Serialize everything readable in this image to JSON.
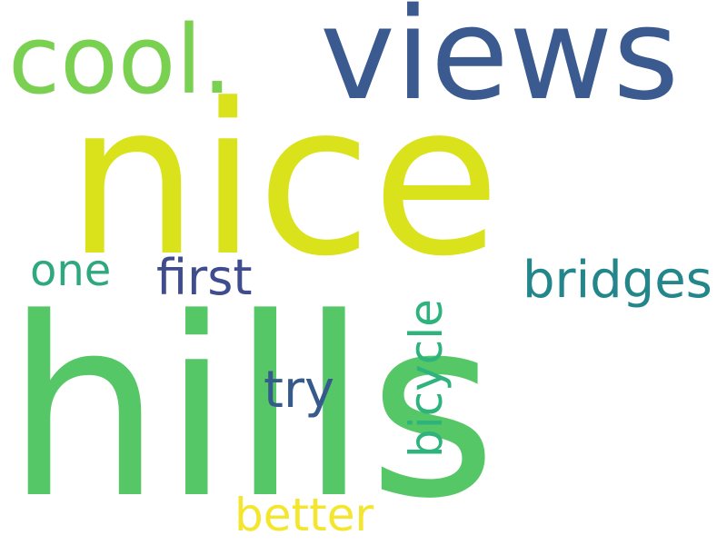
{
  "words": [
    {
      "text": "nice",
      "color": "#d9e21b"
    },
    {
      "text": "hills",
      "color": "#56c766"
    },
    {
      "text": "views",
      "color": "#3b5a90"
    },
    {
      "text": "cool.",
      "color": "#7ad151"
    },
    {
      "text": "one",
      "color": "#2fa77f"
    },
    {
      "text": "first",
      "color": "#3f4c8e"
    },
    {
      "text": "bridges",
      "color": "#23868b"
    },
    {
      "text": "bicycle",
      "color": "#2eb37c"
    },
    {
      "text": "try",
      "color": "#375a8c"
    },
    {
      "text": "better",
      "color": "#f3e62d"
    }
  ]
}
